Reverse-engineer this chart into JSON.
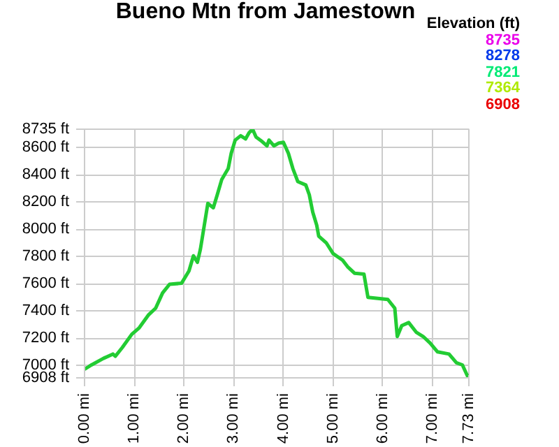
{
  "chart_data": {
    "type": "line",
    "title": "Bueno Mtn from Jamestown",
    "annotations": [
      "Elevation (ft)",
      "8735",
      "8278",
      "7821",
      "7364",
      "6908"
    ],
    "x": [
      0,
      0.14,
      0.38,
      0.57,
      0.62,
      0.76,
      0.95,
      1.1,
      1.29,
      1.43,
      1.57,
      1.71,
      1.95,
      2.1,
      2.19,
      2.27,
      2.33,
      2.38,
      2.48,
      2.59,
      2.67,
      2.76,
      2.89,
      2.95,
      3.03,
      3.14,
      3.24,
      3.31,
      3.38,
      3.45,
      3.57,
      3.67,
      3.71,
      3.81,
      3.9,
      4.0,
      4.1,
      4.19,
      4.29,
      4.45,
      4.52,
      4.59,
      4.67,
      4.71,
      4.86,
      5.0,
      5.19,
      5.29,
      5.43,
      5.62,
      5.7,
      6.1,
      6.24,
      6.29,
      6.38,
      6.52,
      6.67,
      6.81,
      6.95,
      7.1,
      7.33,
      7.48,
      7.6,
      7.7,
      7.73
    ],
    "values": [
      6971,
      7003,
      7051,
      7083,
      7067,
      7131,
      7228,
      7276,
      7372,
      7420,
      7532,
      7596,
      7603,
      7693,
      7805,
      7757,
      7853,
      7965,
      8190,
      8158,
      8254,
      8366,
      8446,
      8558,
      8655,
      8687,
      8664,
      8709,
      8735,
      8677,
      8645,
      8613,
      8655,
      8613,
      8632,
      8639,
      8558,
      8446,
      8350,
      8325,
      8254,
      8126,
      8029,
      7949,
      7901,
      7821,
      7773,
      7725,
      7677,
      7670,
      7500,
      7484,
      7420,
      7212,
      7292,
      7314,
      7244,
      7212,
      7164,
      7099,
      7083,
      7019,
      7003,
      6923,
      6908
    ],
    "xlim": [
      0,
      7.73
    ],
    "ylim": [
      6908,
      8735
    ],
    "xticks": [
      {
        "value": 0,
        "label": "0.00 mi"
      },
      {
        "value": 1,
        "label": "1.00 mi"
      },
      {
        "value": 2,
        "label": "2.00 mi"
      },
      {
        "value": 3,
        "label": "3.00 mi"
      },
      {
        "value": 4,
        "label": "4.00 mi"
      },
      {
        "value": 5,
        "label": "5.00 mi"
      },
      {
        "value": 6,
        "label": "6.00 mi"
      },
      {
        "value": 7,
        "label": "7.00 mi"
      },
      {
        "value": 7.73,
        "label": "7.73 mi"
      }
    ],
    "yticks": [
      {
        "value": 6908,
        "label": "6908 ft"
      },
      {
        "value": 7000,
        "label": "7000 ft"
      },
      {
        "value": 7200,
        "label": "7200 ft"
      },
      {
        "value": 7400,
        "label": "7400 ft"
      },
      {
        "value": 7600,
        "label": "7600 ft"
      },
      {
        "value": 7800,
        "label": "7800 ft"
      },
      {
        "value": 8000,
        "label": "8000 ft"
      },
      {
        "value": 8200,
        "label": "8200 ft"
      },
      {
        "value": 8400,
        "label": "8400 ft"
      },
      {
        "value": 8600,
        "label": "8600 ft"
      },
      {
        "value": 8735,
        "label": "8735 ft"
      }
    ],
    "color": "#22cc33",
    "grid": true,
    "line_style": "solid"
  }
}
